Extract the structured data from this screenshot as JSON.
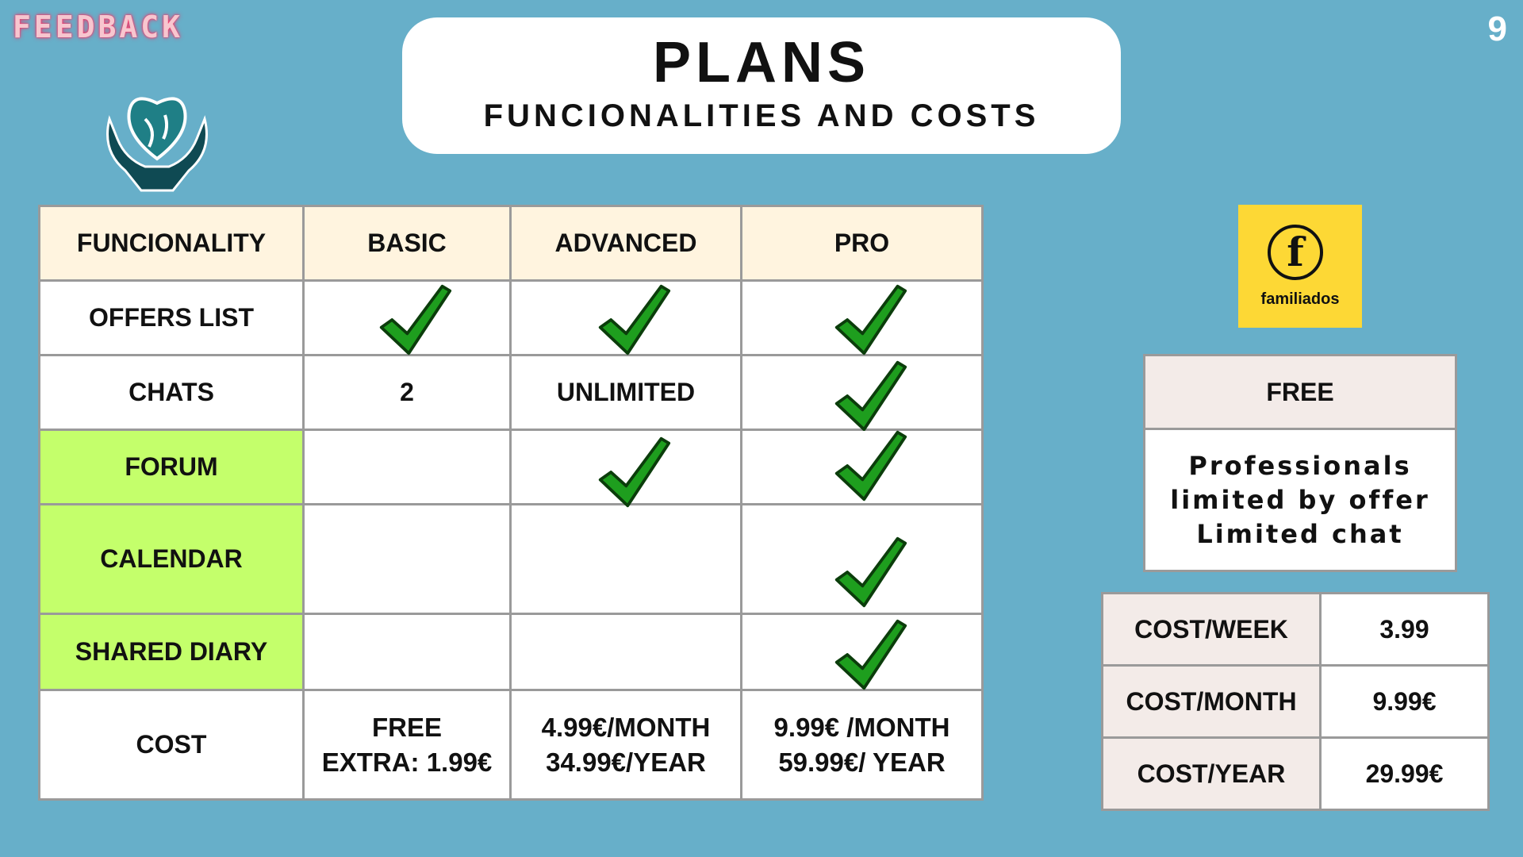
{
  "brand": "FEEDBACK",
  "page_number": "9",
  "title": "PLANS",
  "subtitle": "FUNCIONALITIES AND COSTS",
  "plans_table": {
    "headers": [
      "FUNCIONALITY",
      "BASIC",
      "ADVANCED",
      "PRO"
    ],
    "rows": {
      "offers_list": {
        "label": "OFFERS LIST"
      },
      "chats": {
        "label": "CHATS",
        "basic": "2",
        "advanced": "UNLIMITED"
      },
      "forum": {
        "label": "FORUM"
      },
      "calendar": {
        "label": "CALENDAR"
      },
      "shared_diary": {
        "label": "SHARED DIARY"
      },
      "cost": {
        "label": "COST",
        "basic": [
          "FREE",
          "EXTRA: 1.99€"
        ],
        "advanced": [
          "4.99€/MONTH",
          "34.99€/YEAR"
        ],
        "pro": [
          "9.99€ /MONTH",
          "59.99€/ YEAR"
        ]
      }
    }
  },
  "familiados": {
    "letter": "f",
    "name": "familiados",
    "bg_color": "#fdd835"
  },
  "free_box": {
    "title": "FREE",
    "lines": [
      "Professionals",
      "limited by offer",
      "Limited chat"
    ]
  },
  "costs_box": {
    "rows": [
      {
        "label": "COST/WEEK",
        "value": "3.99"
      },
      {
        "label": "COST/MONTH",
        "value": "9.99€"
      },
      {
        "label": "COST/YEAR",
        "value": "29.99€"
      }
    ]
  },
  "colors": {
    "background": "#67afc9",
    "header_row": "#fff4df",
    "highlight_green": "#c4ff6b",
    "check_green": "#1e9e1e",
    "side_label_bg": "#f3ebe8"
  }
}
